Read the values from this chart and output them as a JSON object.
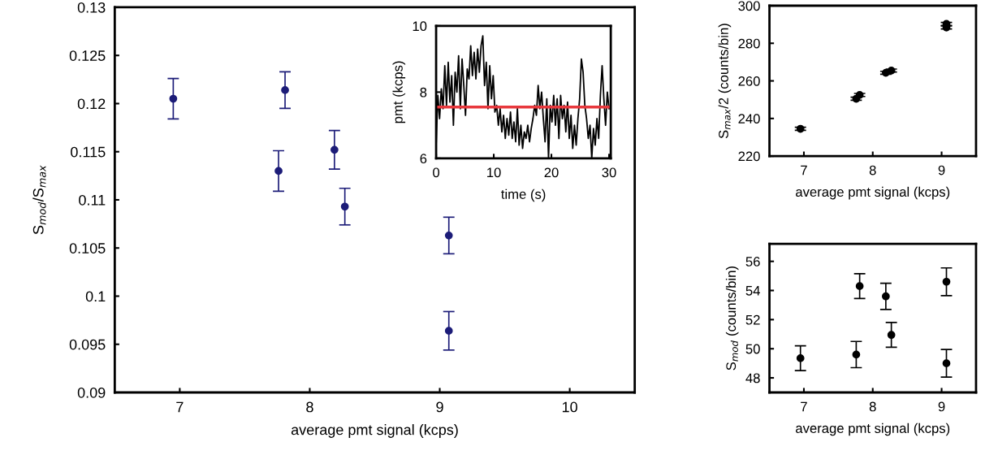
{
  "chart_data": [
    {
      "type": "scatter",
      "xlabel": "average pmt signal (kcps)",
      "ylabel": "S$_{mod}$/S$_{max}$",
      "marker": "circle",
      "xlim": [
        6.5,
        10.5
      ],
      "xticks": [
        7,
        8,
        9,
        10
      ],
      "ylim": [
        0.09,
        0.13
      ],
      "yticks": [
        0.09,
        0.095,
        0.1,
        0.105,
        0.11,
        0.115,
        0.12,
        0.125,
        0.13
      ],
      "series": [
        {
          "color": "#1c1c78",
          "x": [
            6.95,
            7.76,
            7.81,
            8.19,
            8.27,
            9.07,
            9.07
          ],
          "values": [
            0.1205,
            0.113,
            0.1214,
            0.1152,
            0.1093,
            0.1063,
            0.0964
          ],
          "errors": [
            0.0021,
            0.0021,
            0.0019,
            0.002,
            0.0019,
            0.0019,
            0.002
          ]
        }
      ]
    },
    {
      "type": "line",
      "xlabel": "time (s)",
      "ylabel": "pmt (kcps)",
      "xlim": [
        0,
        30.3
      ],
      "xticks": [
        0,
        10,
        20,
        30
      ],
      "ylim": [
        6,
        10
      ],
      "yticks": [
        6,
        8,
        10
      ],
      "ref_lines": [
        {
          "axis": "y",
          "value": 7.55,
          "color": "#e8383d"
        }
      ],
      "series": [
        {
          "color": "#000000",
          "x": [
            0,
            0.3,
            0.6,
            0.9,
            1.2,
            1.5,
            1.8,
            2.1,
            2.4,
            2.7,
            3.0,
            3.3,
            3.6,
            3.9,
            4.2,
            4.5,
            4.8,
            5.1,
            5.4,
            5.7,
            6.0,
            6.3,
            6.6,
            6.9,
            7.2,
            7.5,
            7.8,
            8.1,
            8.4,
            8.7,
            9.0,
            9.3,
            9.6,
            9.9,
            10.2,
            10.5,
            10.8,
            11.1,
            11.4,
            11.7,
            12.0,
            12.3,
            12.6,
            12.9,
            13.2,
            13.5,
            13.8,
            14.1,
            14.4,
            14.7,
            15.0,
            15.3,
            15.6,
            15.9,
            16.2,
            16.5,
            16.8,
            17.1,
            17.4,
            17.7,
            18.0,
            18.3,
            18.6,
            18.9,
            19.2,
            19.5,
            19.8,
            20.1,
            20.4,
            20.7,
            21.0,
            21.3,
            21.6,
            21.9,
            22.2,
            22.5,
            22.8,
            23.1,
            23.4,
            23.7,
            24.0,
            24.3,
            24.6,
            24.9,
            25.2,
            25.5,
            25.8,
            26.1,
            26.4,
            26.7,
            27.0,
            27.3,
            27.6,
            27.9,
            28.2,
            28.5,
            28.8,
            29.1,
            29.4,
            29.7,
            30.0
          ],
          "values": [
            6.4,
            7.9,
            7.2,
            8.1,
            7.5,
            8.8,
            7.6,
            8.9,
            7.7,
            8.5,
            7.0,
            8.6,
            8.0,
            9.1,
            7.5,
            9.0,
            8.2,
            7.3,
            8.7,
            8.4,
            9.4,
            8.5,
            9.2,
            8.4,
            9.3,
            8.6,
            9.4,
            9.7,
            8.2,
            8.9,
            7.5,
            8.8,
            7.8,
            8.5,
            7.4,
            7.6,
            7.0,
            7.5,
            6.8,
            7.3,
            6.6,
            7.2,
            6.7,
            7.4,
            6.6,
            7.1,
            6.5,
            7.5,
            6.4,
            7.0,
            6.3,
            6.8,
            6.6,
            7.0,
            6.5,
            6.9,
            7.2,
            7.6,
            7.3,
            8.2,
            7.5,
            8.0,
            7.2,
            6.5,
            7.8,
            6.0,
            7.6,
            7.1,
            7.9,
            7.0,
            7.8,
            6.6,
            7.9,
            7.2,
            7.6,
            6.8,
            7.7,
            6.6,
            7.3,
            6.3,
            7.0,
            6.4,
            7.2,
            7.8,
            9.0,
            8.6,
            7.6,
            7.2,
            6.6,
            7.0,
            6.0,
            6.9,
            6.4,
            7.2,
            6.6,
            7.9,
            8.8,
            7.8,
            7.0,
            8.0,
            7.5
          ]
        }
      ]
    },
    {
      "type": "scatter",
      "xlabel": "average pmt signal (kcps)",
      "ylabel": "S$_{max}$/2 (counts/bin)",
      "marker": "circle",
      "xlim": [
        6.5,
        9.5
      ],
      "xticks": [
        7,
        8,
        9
      ],
      "ylim": [
        220,
        300
      ],
      "yticks": [
        220,
        240,
        260,
        280,
        300
      ],
      "series": [
        {
          "color": "#000000",
          "x": [
            6.95,
            7.76,
            7.81,
            8.19,
            8.27,
            9.07,
            9.07
          ],
          "values": [
            234.5,
            250.5,
            252.5,
            264.3,
            265.5,
            288.4,
            290.3
          ],
          "errors": [
            0.8,
            0.8,
            0.8,
            0.8,
            0.8,
            0.8,
            0.8
          ]
        }
      ]
    },
    {
      "type": "scatter",
      "xlabel": "average pmt signal (kcps)",
      "ylabel": "S$_{mod}$ (counts/bin)",
      "marker": "circle",
      "xlim": [
        6.5,
        9.5
      ],
      "xticks": [
        7,
        8,
        9
      ],
      "ylim": [
        47,
        57.2
      ],
      "yticks": [
        48,
        50,
        52,
        54,
        56
      ],
      "series": [
        {
          "color": "#000000",
          "x": [
            6.95,
            7.76,
            7.81,
            8.19,
            8.27,
            9.07,
            9.07
          ],
          "values": [
            49.35,
            49.6,
            54.3,
            53.6,
            50.95,
            54.6,
            49.0
          ],
          "errors": [
            0.85,
            0.9,
            0.85,
            0.9,
            0.85,
            0.95,
            0.95
          ]
        }
      ]
    }
  ]
}
